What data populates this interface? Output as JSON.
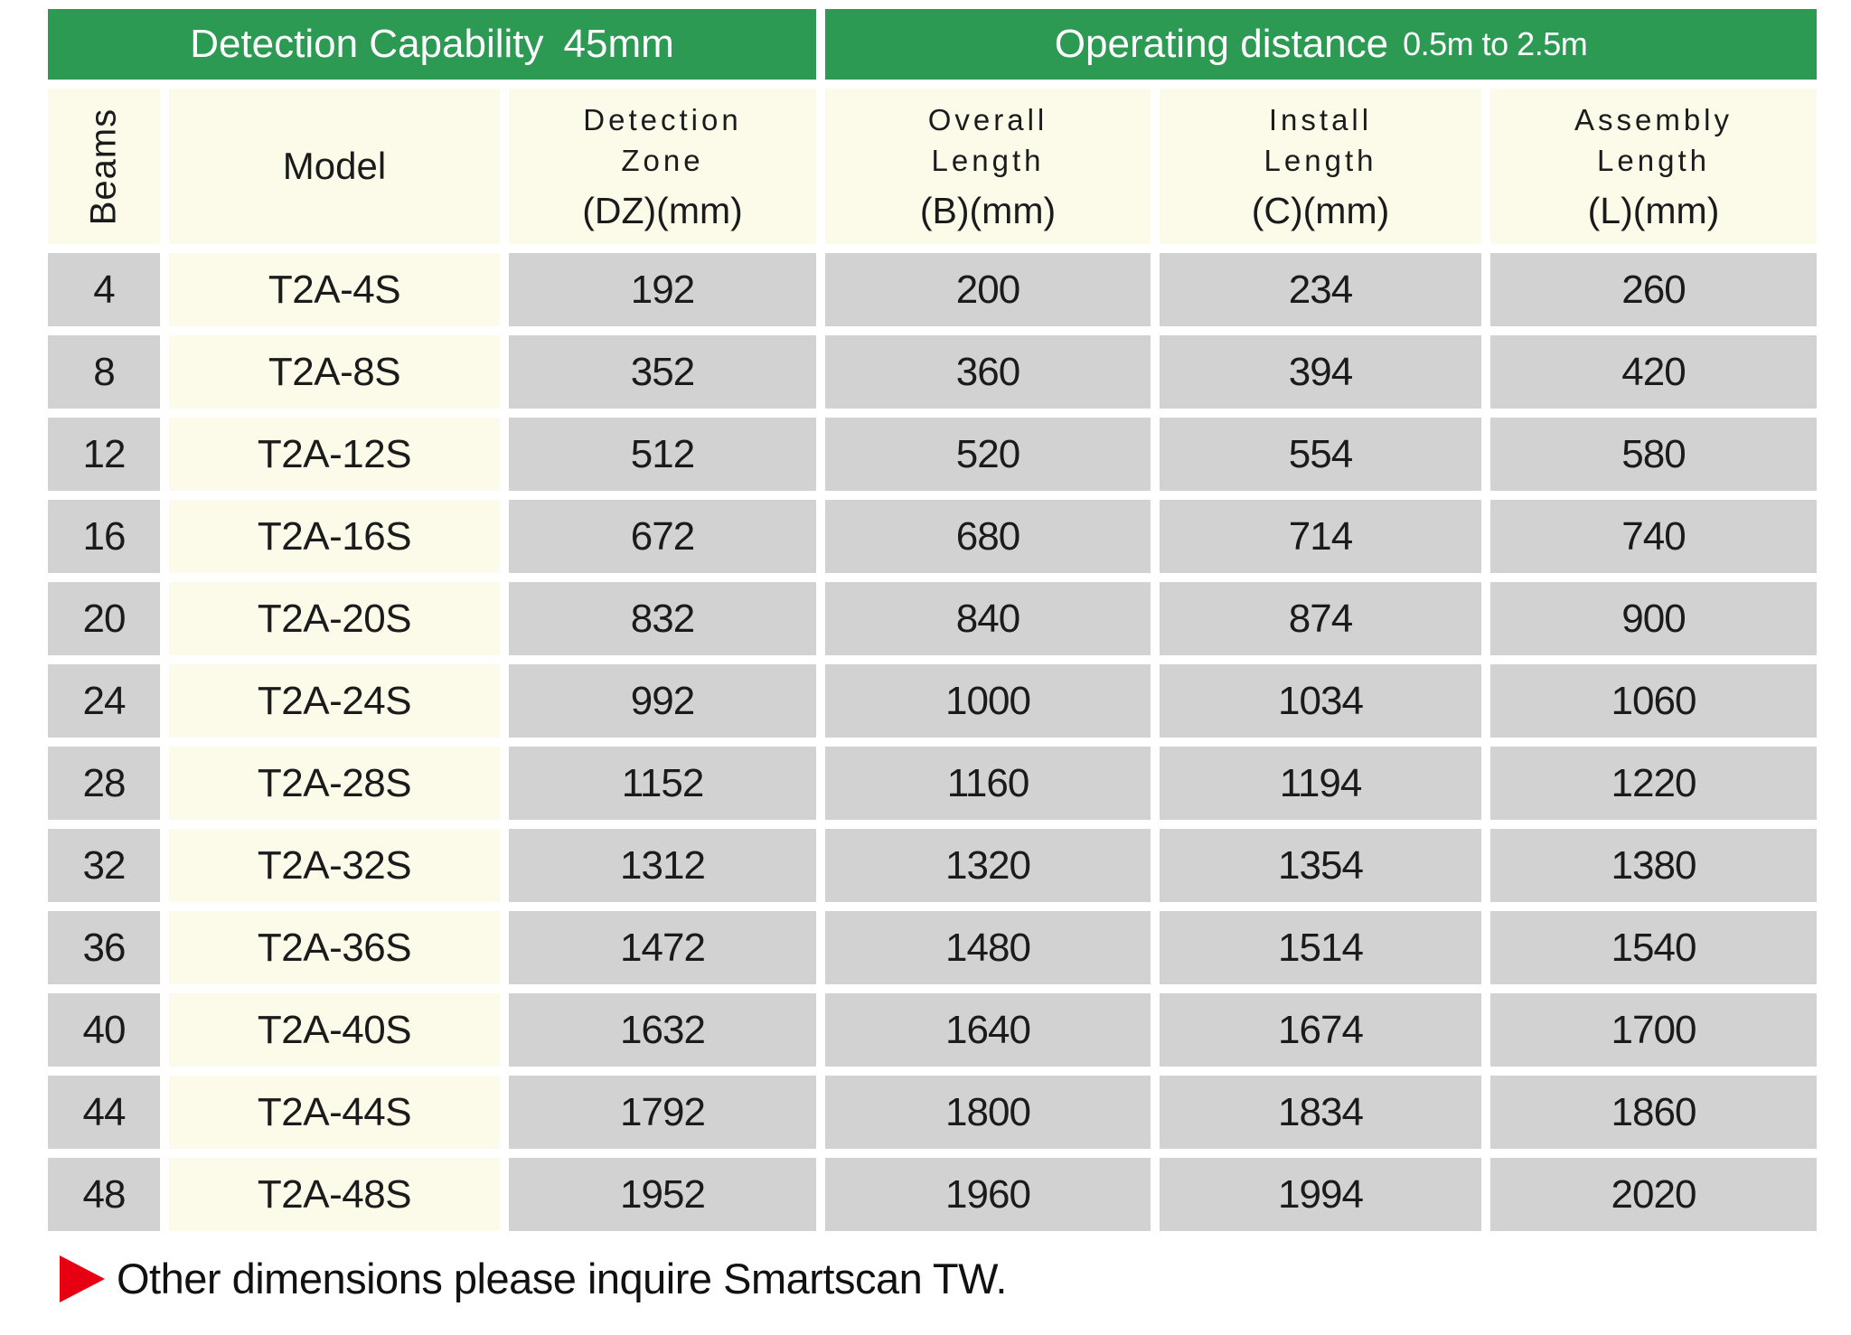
{
  "table": {
    "band1_title": "Detection Capability",
    "band1_value": "45mm",
    "band2_title": "Operating distance",
    "band2_subtitle": "0.5m to 2.5m",
    "columns": {
      "beams": "Beams",
      "model": "Model",
      "dz_line1": "Detection",
      "dz_line2": "Zone",
      "dz_unit": "(DZ)(mm)",
      "overall_line1": "Overall",
      "overall_line2": "Length",
      "overall_unit": "(B)(mm)",
      "install_line1": "Install",
      "install_line2": "Length",
      "install_unit": "(C)(mm)",
      "assembly_line1": "Assembly",
      "assembly_line2": "Length",
      "assembly_unit": "(L)(mm)"
    },
    "rows": [
      {
        "beams": "4",
        "model": "T2A-4S",
        "dz": "192",
        "overall": "200",
        "install": "234",
        "assembly": "260"
      },
      {
        "beams": "8",
        "model": "T2A-8S",
        "dz": "352",
        "overall": "360",
        "install": "394",
        "assembly": "420"
      },
      {
        "beams": "12",
        "model": "T2A-12S",
        "dz": "512",
        "overall": "520",
        "install": "554",
        "assembly": "580"
      },
      {
        "beams": "16",
        "model": "T2A-16S",
        "dz": "672",
        "overall": "680",
        "install": "714",
        "assembly": "740"
      },
      {
        "beams": "20",
        "model": "T2A-20S",
        "dz": "832",
        "overall": "840",
        "install": "874",
        "assembly": "900"
      },
      {
        "beams": "24",
        "model": "T2A-24S",
        "dz": "992",
        "overall": "1000",
        "install": "1034",
        "assembly": "1060"
      },
      {
        "beams": "28",
        "model": "T2A-28S",
        "dz": "1152",
        "overall": "1160",
        "install": "1194",
        "assembly": "1220"
      },
      {
        "beams": "32",
        "model": "T2A-32S",
        "dz": "1312",
        "overall": "1320",
        "install": "1354",
        "assembly": "1380"
      },
      {
        "beams": "36",
        "model": "T2A-36S",
        "dz": "1472",
        "overall": "1480",
        "install": "1514",
        "assembly": "1540"
      },
      {
        "beams": "40",
        "model": "T2A-40S",
        "dz": "1632",
        "overall": "1640",
        "install": "1674",
        "assembly": "1700"
      },
      {
        "beams": "44",
        "model": "T2A-44S",
        "dz": "1792",
        "overall": "1800",
        "install": "1834",
        "assembly": "1860"
      },
      {
        "beams": "48",
        "model": "T2A-48S",
        "dz": "1952",
        "overall": "1960",
        "install": "1994",
        "assembly": "2020"
      }
    ]
  },
  "footer": {
    "note": "Other dimensions please inquire Smartscan TW."
  },
  "colors": {
    "header_green": "#2d9a54",
    "cell_cream": "#fcfae9",
    "cell_gray": "#d2d2d2",
    "note_red": "#e60012"
  }
}
